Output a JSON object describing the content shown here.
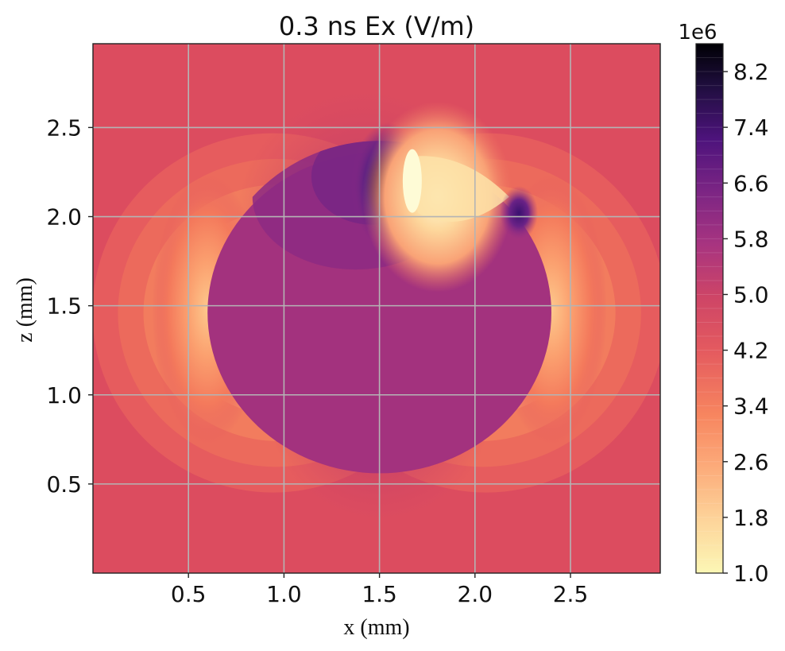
{
  "chart_data": {
    "type": "heatmap",
    "title": "0.3 ns Ex (V/m)",
    "xlabel": "x (mm)",
    "ylabel": "z (mm)",
    "xlim": [
      0.0,
      2.97
    ],
    "ylim": [
      0.0,
      2.97
    ],
    "x_ticks": [
      "0.5",
      "1.0",
      "1.5",
      "2.0",
      "2.5"
    ],
    "x_tick_values": [
      0.5,
      1.0,
      1.5,
      2.0,
      2.5
    ],
    "y_ticks": [
      "0.5",
      "1.0",
      "1.5",
      "2.0",
      "2.5"
    ],
    "y_tick_values": [
      0.5,
      1.0,
      1.5,
      2.0,
      2.5
    ],
    "grid": true,
    "colormap": "magma_r",
    "colorbar": {
      "multiplier": "1e6",
      "min": 1.0,
      "max": 8.6,
      "tick_labels": [
        "1.0",
        "1.8",
        "2.6",
        "3.4",
        "4.2",
        "5.0",
        "5.8",
        "6.6",
        "7.4",
        "8.2"
      ],
      "tick_values": [
        1.0,
        1.8,
        2.6,
        3.4,
        4.2,
        5.0,
        5.8,
        6.6,
        7.4,
        8.2
      ],
      "levels": 38
    },
    "field_features": {
      "background_value": 4.0,
      "sphere": {
        "center": [
          1.5,
          1.46
        ],
        "radius": 0.9,
        "value": 5.1
      },
      "hotspots": [
        {
          "x": 1.56,
          "z": 2.17,
          "value": 8.6
        },
        {
          "x": 1.68,
          "z": 2.2,
          "value": 1.0
        },
        {
          "x": 2.23,
          "z": 2.02,
          "value": 6.3
        },
        {
          "x": 0.6,
          "z": 1.48,
          "value": 1.6
        },
        {
          "x": 2.4,
          "z": 1.48,
          "value": 1.6
        }
      ]
    }
  }
}
